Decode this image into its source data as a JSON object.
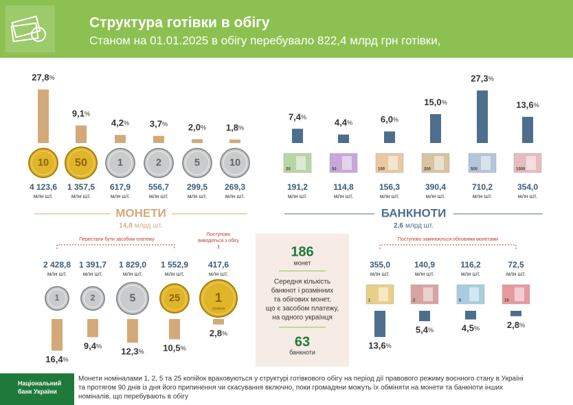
{
  "header": {
    "title": "Структура готівки в обігу",
    "subtitle": "Станом на 01.01.2025 в обігу перебувало 822,4 млрд грн готівки,"
  },
  "percent_sign": "%",
  "coins": {
    "title": "МОНЕТИ",
    "total": "14,8",
    "total_unit": "млрд шт.",
    "unit": "млн шт.",
    "in_use": [
      {
        "denomination": "10",
        "percent": {
          "value": 27.8,
          "label": "27,8"
        },
        "amount": "4 123,6"
      },
      {
        "denomination": "50",
        "percent": {
          "value": 9.1,
          "label": "9,1"
        },
        "amount": "1 357,5"
      },
      {
        "denomination": "1",
        "percent": {
          "value": 4.2,
          "label": "4,2"
        },
        "amount": "617,9"
      },
      {
        "denomination": "2",
        "percent": {
          "value": 3.7,
          "label": "3,7"
        },
        "amount": "556,7"
      },
      {
        "denomination": "5",
        "percent": {
          "value": 2.0,
          "label": "2,0"
        },
        "amount": "299,5"
      },
      {
        "denomination": "10",
        "percent": {
          "value": 1.8,
          "label": "1,8"
        },
        "amount": "269,3"
      }
    ],
    "not_legal_tender_label": "Перестали бути засобом платежу",
    "phasing_out_label": [
      "Поступово",
      "виводяться з обігу"
    ],
    "other": [
      {
        "denomination": "1",
        "percent": {
          "value": 16.4,
          "label": "16,4"
        },
        "amount": "2 428,8"
      },
      {
        "denomination": "2",
        "percent": {
          "value": 9.4,
          "label": "9,4"
        },
        "amount": "1 391,7"
      },
      {
        "denomination": "5",
        "percent": {
          "value": 12.3,
          "label": "12,3"
        },
        "amount": "1 829,0"
      },
      {
        "denomination": "25",
        "percent": {
          "value": 10.5,
          "label": "10,5"
        },
        "amount": "1 552,9"
      },
      {
        "denomination": "1",
        "percent": {
          "value": 2.8,
          "label": "2,8"
        },
        "amount": "417,6",
        "caption": "гривня"
      }
    ]
  },
  "banknotes": {
    "title": "БАНКНОТИ",
    "total": "2,6",
    "total_unit": "млрд шт.",
    "unit": "млн шт.",
    "in_use": [
      {
        "denomination": "20",
        "percent": {
          "value": 7.4,
          "label": "7,4"
        },
        "amount": "191,2"
      },
      {
        "denomination": "50",
        "percent": {
          "value": 4.4,
          "label": "4,4"
        },
        "amount": "114,8"
      },
      {
        "denomination": "100",
        "percent": {
          "value": 6.0,
          "label": "6,0"
        },
        "amount": "156,3"
      },
      {
        "denomination": "200",
        "percent": {
          "value": 15.0,
          "label": "15,0"
        },
        "amount": "390,4"
      },
      {
        "denomination": "500",
        "percent": {
          "value": 27.3,
          "label": "27,3"
        },
        "amount": "710,2"
      },
      {
        "denomination": "1000",
        "percent": {
          "value": 13.6,
          "label": "13,6"
        },
        "amount": "354,0"
      }
    ],
    "replaced_label": "Поступово замінюються обіговими монетами",
    "other": [
      {
        "denomination": "1",
        "percent": {
          "value": 13.6,
          "label": "13,6"
        },
        "amount": "355,0"
      },
      {
        "denomination": "2",
        "percent": {
          "value": 5.4,
          "label": "5,4"
        },
        "amount": "140,9"
      },
      {
        "denomination": "5",
        "percent": {
          "value": 4.5,
          "label": "4,5"
        },
        "amount": "116,2"
      },
      {
        "denomination": "10",
        "percent": {
          "value": 2.8,
          "label": "2,8"
        },
        "amount": "72,5"
      }
    ]
  },
  "per_capita": {
    "coins": "186",
    "coins_label": "монет",
    "description": [
      "Середня кількість",
      "банкнот і розмінних",
      "та обігових монет,",
      "що є засобом платежу,",
      "на одного українця"
    ],
    "banknotes": "63",
    "banknotes_label": "банкноти"
  },
  "footer": {
    "bank": [
      "Національний",
      "банк України"
    ],
    "note": [
      "Монети номіналами 1, 2, 5 та 25 копійок враховуються у структурі готівкового обігу на період дії правового режиму воєнного стану в Україні",
      "та протягом 90 днів із дня його припинення чи скасування включно, поки громадяни можуть їх обміняти на  монети та  банкноти інших",
      "номіналів, що перебувають  в  обігу"
    ]
  }
}
